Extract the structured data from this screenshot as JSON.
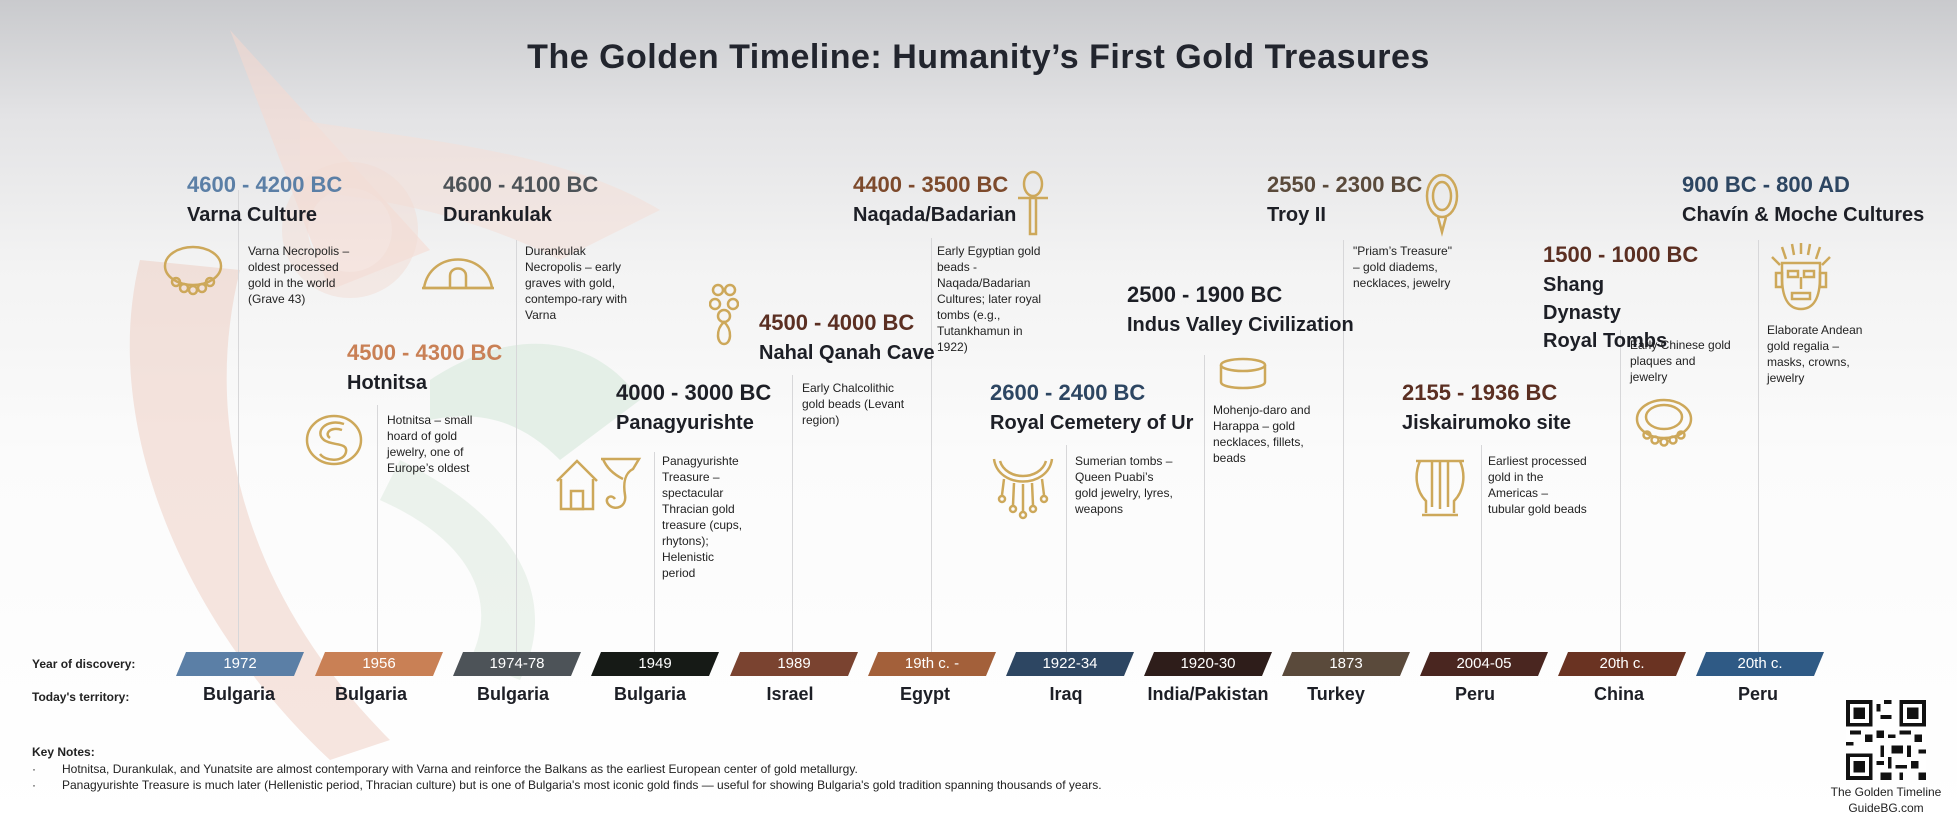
{
  "title": "The Golden Timeline: Humanity’s First Gold Treasures",
  "colors": {
    "gold": "#cda85a",
    "steel_blue": "#5b7fa6",
    "copper": "#c98055",
    "slate": "#4d5358",
    "dark_brown": "#5b2f22",
    "navy": "#2d4662"
  },
  "events": [
    {
      "dates": "4600 - 4200 BC",
      "name": "Varna Culture",
      "desc": "Varna Necropolis – oldest processed gold in the world (Grave 43)",
      "color": "#5b7fa6",
      "icon": "bead-necklace-icon"
    },
    {
      "dates": "4500 - 4300 BC",
      "name": "Hotnitsa",
      "desc": "Hotnitsa – small hoard of gold jewelry, one of Europe’s oldest",
      "color": "#c98055",
      "icon": "spiral-ornament-icon"
    },
    {
      "dates": "4600 - 4100 BC",
      "name": "Durankulak",
      "desc": "Durankulak Necropolis – early graves with gold, contempo-rary with Varna",
      "color": "#4d5358",
      "icon": "burial-mound-icon"
    },
    {
      "dates": "4000 - 3000 BC",
      "name": "Panagyurishte",
      "desc": "Panagyurishte Treasure – spectacular Thracian gold treasure (cups, rhytons); Helenistic period",
      "color": "#1d1f26",
      "icon": "house-and-rhyton-icon"
    },
    {
      "dates": "4500 - 4000 BC",
      "name": "Nahal Qanah Cave",
      "desc": "Early Chalcolithic gold beads (Levant region)",
      "color": "#5b2f22",
      "icon": "pendant-necklace-icon"
    },
    {
      "dates": "4400 - 3500 BC",
      "name": "Naqada/Badarian",
      "desc": "Early Egyptian gold beads - Naqada/Badarian Cultures; later royal tombs (e.g., Tutankhamun in 1922)",
      "color": "#7d4a2c",
      "icon": "ankh-icon"
    },
    {
      "dates": "2600 - 2400 BC",
      "name": "Royal Cemetery of Ur",
      "desc": "Sumerian tombs – Queen Puabi’s gold jewelry, lyres, weapons",
      "color": "#2d4662",
      "icon": "crescent-necklace-icon"
    },
    {
      "dates": "2500 - 1900 BC",
      "name": "Indus Valley Civilization",
      "desc": "Mohenjo-daro and Harappa – gold necklaces, fillets, beads",
      "color": "#1d1f26",
      "icon": "gold-band-icon"
    },
    {
      "dates": "2550 - 2300 BC",
      "name": "Troy II",
      "desc": "\"Priam’s Treasure\" – gold diadems, necklaces, jewelry",
      "color": "#5a4a3b",
      "icon": "oval-pendant-icon"
    },
    {
      "dates": "2155 - 1936 BC",
      "name": "Jiskairumoko site",
      "desc": "Earliest processed gold in the Americas – tubular gold beads",
      "color": "#5b2f22",
      "icon": "lyre-icon"
    },
    {
      "dates": "1500 - 1000 BC",
      "name": "Shang Dynasty Royal Tombs",
      "desc": "Early Chinese gold plaques and jewelry",
      "color": "#5b2f22",
      "icon": "bead-collar-icon"
    },
    {
      "dates": "900 BC - 800 AD",
      "name": "Chavín & Moche Cultures",
      "desc": "Elaborate Andean gold regalia – masks, crowns, jewelry",
      "color": "#2d4662",
      "icon": "gold-mask-icon"
    }
  ],
  "discovery_label": "Year of discovery:",
  "territory_label": "Today's territory:",
  "timeline": [
    {
      "year": "1972",
      "territory": "Bulgaria",
      "color": "#5b7fa6"
    },
    {
      "year": "1956",
      "territory": "Bulgaria",
      "color": "#c98055"
    },
    {
      "year": "1974-78",
      "territory": "Bulgaria",
      "color": "#4d5358"
    },
    {
      "year": "1949",
      "territory": "Bulgaria",
      "color": "#161a16"
    },
    {
      "year": "1989",
      "territory": "Israel",
      "color": "#7a4330"
    },
    {
      "year": "19th c. -",
      "territory": "Egypt",
      "color": "#a3603a"
    },
    {
      "year": "1922-34",
      "territory": "Iraq",
      "color": "#2d4662"
    },
    {
      "year": "1920-30",
      "territory": "India/Pakistan",
      "color": "#2e1d1a"
    },
    {
      "year": "1873",
      "territory": "Turkey",
      "color": "#5a4a3b"
    },
    {
      "year": "2004-05",
      "territory": "Peru",
      "color": "#4a2620"
    },
    {
      "year": "20th c.",
      "territory": "China",
      "color": "#6a3322"
    },
    {
      "year": "20th c.",
      "territory": "Peru",
      "color": "#2f5a85"
    }
  ],
  "notes": {
    "heading": "Key Notes:",
    "bullet": "·",
    "items": [
      "Hotnitsa, Durankulak, and Yunatsite are almost contemporary with Varna and reinforce the Balkans as the earliest European center of gold metallurgy.",
      "Panagyurishte Treasure is much later (Hellenistic period, Thracian culture) but is one of Bulgaria's most iconic gold finds — useful for showing Bulgaria's gold tradition spanning thousands of years."
    ]
  },
  "footer": {
    "line1": "The Golden Timeline",
    "line2": "GuideBG.com",
    "qr": "qr-code-icon"
  }
}
